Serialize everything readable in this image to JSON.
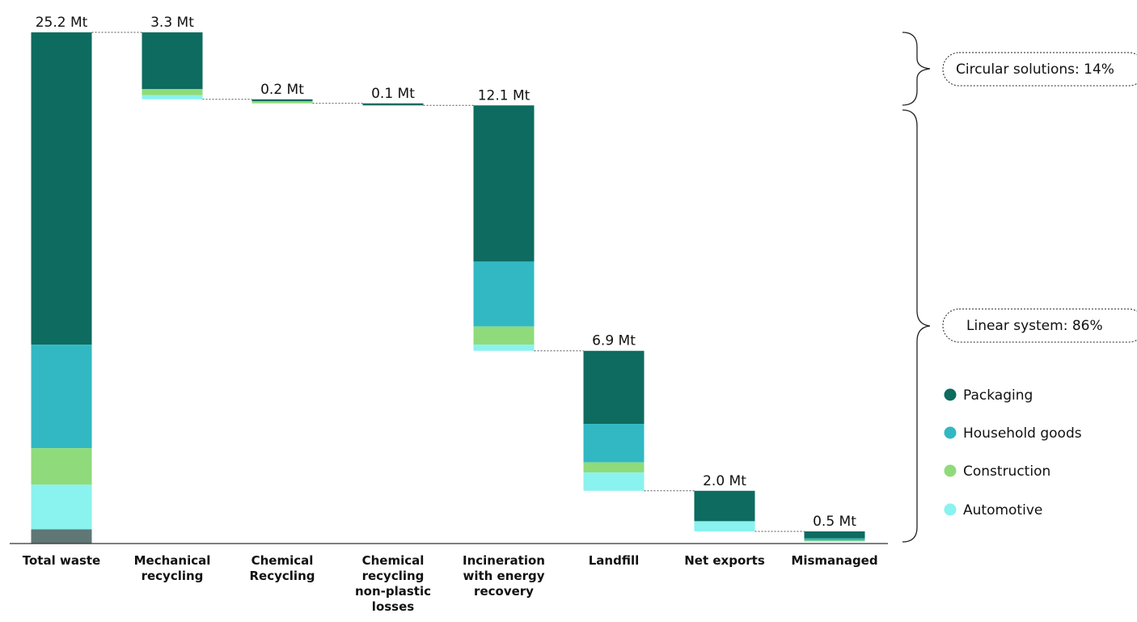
{
  "chart_data": {
    "type": "bar",
    "subtype": "waterfall-stacked",
    "unit": "Mt",
    "categories": [
      [
        "Total waste"
      ],
      [
        "Mechanical",
        "recycling"
      ],
      [
        "Chemical",
        "Recycling"
      ],
      [
        "Chemical",
        "recycling",
        "non-plastic",
        "losses"
      ],
      [
        "Incineration",
        "with energy",
        "recovery"
      ],
      [
        "Landfill"
      ],
      [
        "Net exports"
      ],
      [
        "Mismanaged"
      ]
    ],
    "totals": [
      25.2,
      3.3,
      0.2,
      0.1,
      12.1,
      6.9,
      2.0,
      0.5
    ],
    "value_labels": [
      "25.2 Mt",
      "3.3 Mt",
      "0.2 Mt",
      "0.1 Mt",
      "12.1 Mt",
      "6.9 Mt",
      "2.0 Mt",
      "0.5 Mt"
    ],
    "series": [
      {
        "name": "Packaging",
        "color": "#0d6b5f",
        "values": [
          15.4,
          2.8,
          0.1,
          0.1,
          7.7,
          3.6,
          1.5,
          0.35
        ]
      },
      {
        "name": "Household goods",
        "color": "#31b8c3",
        "values": [
          5.1,
          0.0,
          0.0,
          0.0,
          3.2,
          1.9,
          0.0,
          0.1
        ]
      },
      {
        "name": "Construction",
        "color": "#8fdb7b",
        "values": [
          1.8,
          0.3,
          0.1,
          0.0,
          0.9,
          0.5,
          0.0,
          0.05
        ]
      },
      {
        "name": "Automotive",
        "color": "#8af2ef",
        "values": [
          2.2,
          0.2,
          0.0,
          0.0,
          0.3,
          0.9,
          0.5,
          0.0
        ]
      },
      {
        "name": "",
        "color": "#5f7775",
        "values": [
          0.7,
          0,
          0,
          0,
          0,
          0,
          0,
          0
        ]
      }
    ],
    "legend_position": "right",
    "grid": false
  },
  "annotations": {
    "circular": "Circular solutions: 14%",
    "linear": "Linear system: 86%"
  }
}
